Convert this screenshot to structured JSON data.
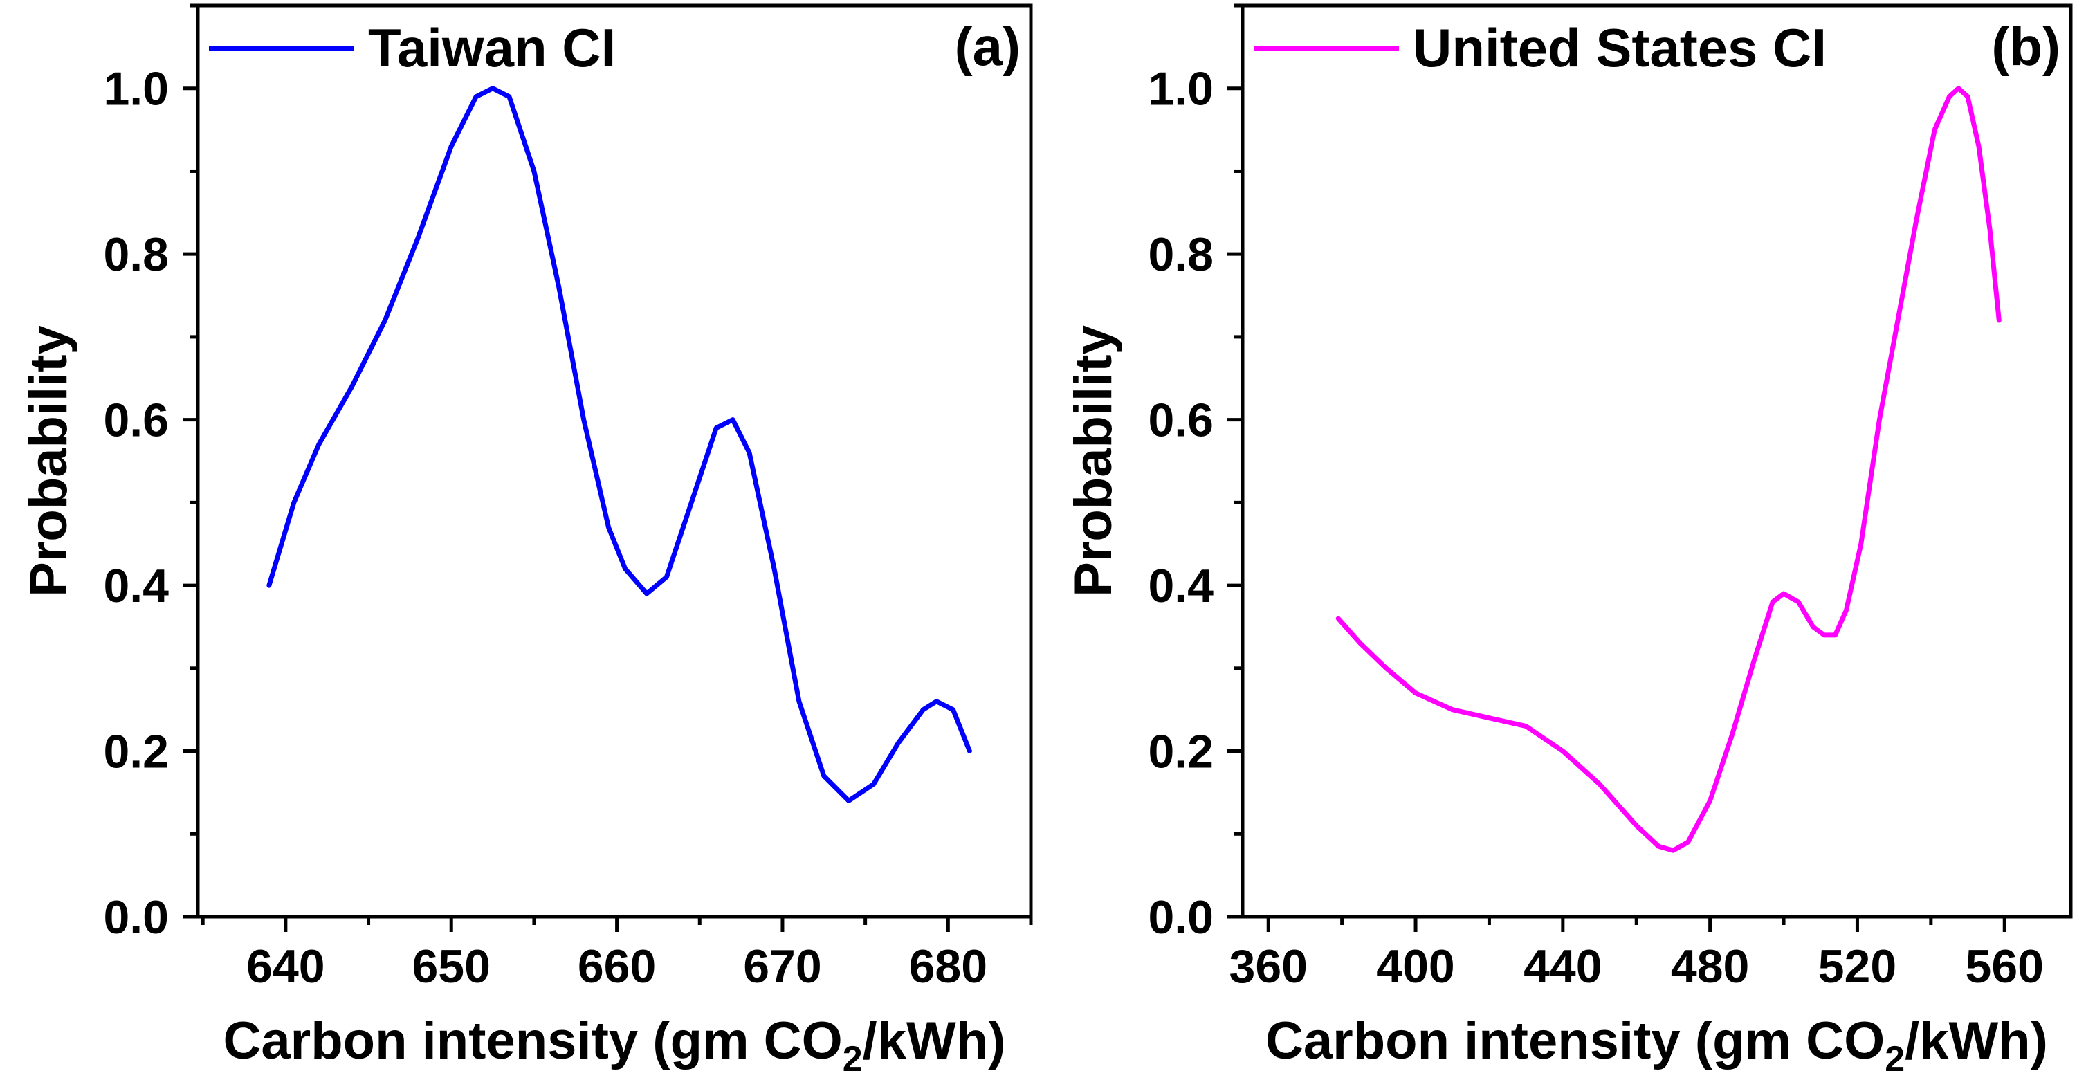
{
  "chart_data": [
    {
      "type": "line",
      "panel_label": "(a)",
      "xlabel_main": "Carbon intensity (gm CO",
      "xlabel_sub": "2",
      "xlabel_tail": "/kWh)",
      "ylabel": "Probability",
      "xlim": [
        634.7,
        685.0
      ],
      "ylim": [
        0.0,
        1.1
      ],
      "x_ticks": [
        640,
        650,
        660,
        670,
        680
      ],
      "y_ticks": [
        0.0,
        0.2,
        0.4,
        0.6,
        0.8,
        1.0
      ],
      "grid": false,
      "legend_position": "top-left",
      "series": [
        {
          "name": "Taiwan CI",
          "color": "#0000ff",
          "x": [
            639.0,
            640.5,
            642.0,
            644.0,
            646.0,
            648.0,
            650.0,
            651.5,
            652.5,
            653.5,
            655.0,
            656.5,
            658.0,
            659.5,
            660.5,
            661.8,
            663.0,
            664.5,
            666.0,
            667.0,
            668.0,
            669.5,
            671.0,
            672.5,
            674.0,
            675.5,
            677.0,
            678.5,
            679.3,
            680.3,
            681.3
          ],
          "y": [
            0.4,
            0.5,
            0.57,
            0.64,
            0.72,
            0.82,
            0.93,
            0.99,
            1.0,
            0.99,
            0.9,
            0.76,
            0.6,
            0.47,
            0.42,
            0.39,
            0.41,
            0.5,
            0.59,
            0.6,
            0.56,
            0.42,
            0.26,
            0.17,
            0.14,
            0.16,
            0.21,
            0.25,
            0.26,
            0.25,
            0.2
          ]
        }
      ]
    },
    {
      "type": "line",
      "panel_label": "(b)",
      "xlabel_main": "Carbon intensity (gm CO",
      "xlabel_sub": "2",
      "xlabel_tail": "/kWh)",
      "ylabel": "Probability",
      "xlim": [
        353.0,
        578.0
      ],
      "ylim": [
        0.0,
        1.1
      ],
      "x_ticks": [
        360,
        400,
        440,
        480,
        520,
        560
      ],
      "y_ticks": [
        0.0,
        0.2,
        0.4,
        0.6,
        0.8,
        1.0
      ],
      "grid": false,
      "legend_position": "top-left",
      "series": [
        {
          "name": "United States CI",
          "color": "#ff00ff",
          "x": [
            379.0,
            385.0,
            392.0,
            400.0,
            410.0,
            420.0,
            430.0,
            440.0,
            450.0,
            460.0,
            466.0,
            470.0,
            474.0,
            480.0,
            486.0,
            492.0,
            497.0,
            500.0,
            504.0,
            508.0,
            511.0,
            514.0,
            517.0,
            521.0,
            526.0,
            531.0,
            536.0,
            541.0,
            545.0,
            547.5,
            550.0,
            553.0,
            556.0,
            558.5
          ],
          "y": [
            0.36,
            0.33,
            0.3,
            0.27,
            0.25,
            0.24,
            0.23,
            0.2,
            0.16,
            0.11,
            0.085,
            0.08,
            0.09,
            0.14,
            0.22,
            0.31,
            0.38,
            0.39,
            0.38,
            0.35,
            0.34,
            0.34,
            0.37,
            0.45,
            0.6,
            0.72,
            0.84,
            0.95,
            0.99,
            1.0,
            0.99,
            0.93,
            0.83,
            0.72
          ]
        }
      ]
    }
  ]
}
